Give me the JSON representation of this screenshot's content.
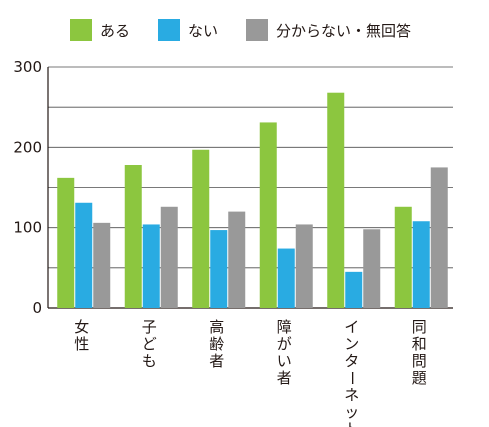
{
  "chart_data": {
    "type": "bar",
    "legend": [
      {
        "name": "ある",
        "color": "#8cc63f"
      },
      {
        "name": "ない",
        "color": "#29abe2"
      },
      {
        "name": "分からない・無回答",
        "color": "#999999"
      }
    ],
    "categories": [
      "女性",
      "子ども",
      "高齢者",
      "障がい者",
      "インターネット",
      "同和問題"
    ],
    "series": [
      {
        "name": "ある",
        "color": "#8cc63f",
        "values": [
          162,
          178,
          197,
          231,
          268,
          126
        ]
      },
      {
        "name": "ない",
        "color": "#29abe2",
        "values": [
          131,
          104,
          97,
          74,
          45,
          108
        ]
      },
      {
        "name": "分からない・無回答",
        "color": "#999999",
        "values": [
          106,
          126,
          120,
          104,
          98,
          175
        ]
      }
    ],
    "yticks": [
      0,
      100,
      200,
      300
    ],
    "ylim": [
      0,
      300
    ],
    "grid": true,
    "legend_position": "top"
  }
}
